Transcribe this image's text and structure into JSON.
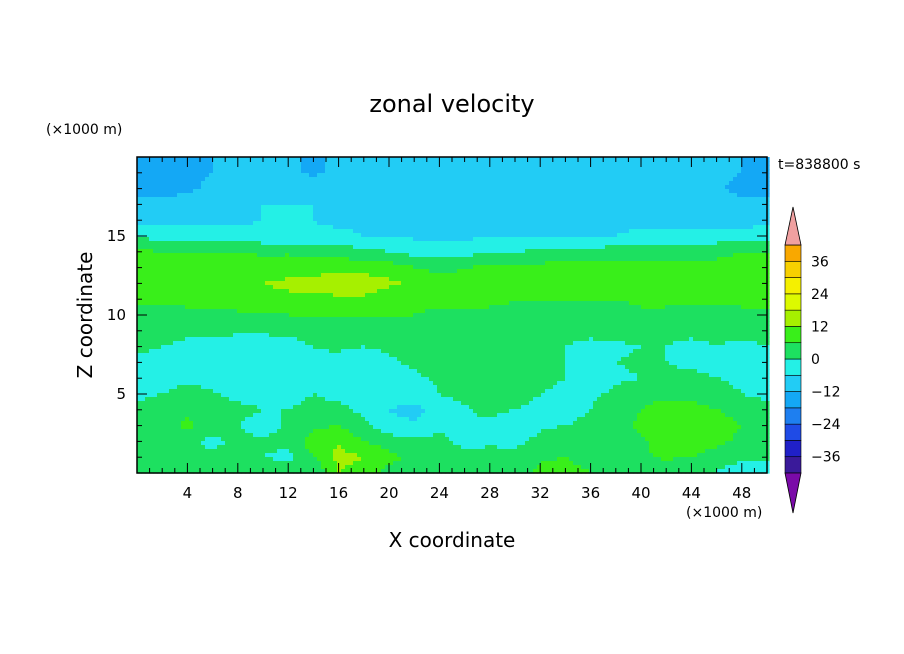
{
  "chart_data": {
    "type": "heatmap",
    "title": "zonal velocity",
    "xlabel": "X coordinate",
    "ylabel": "Z coordinate",
    "x_unit": "(×1000 m)",
    "z_unit": "(×1000 m)",
    "time_label": "t=838800 s",
    "xlim": [
      0,
      50
    ],
    "ylim": [
      0,
      20
    ],
    "x_ticks": [
      "4",
      "8",
      "12",
      "16",
      "20",
      "24",
      "28",
      "32",
      "36",
      "40",
      "44",
      "48"
    ],
    "y_ticks": [
      "5",
      "10",
      "15"
    ],
    "colorbar": {
      "min": -42,
      "max": 42,
      "step": 6,
      "tick_labels": [
        "36",
        "24",
        "12",
        "0",
        "−12",
        "−24",
        "−36"
      ],
      "colors": [
        "#7a0aa8",
        "#3a1a9a",
        "#2020c8",
        "#1f4be6",
        "#1e7ff0",
        "#14a8f5",
        "#22ccf5",
        "#24f0e6",
        "#1de060",
        "#39ef1a",
        "#a6f000",
        "#dcfa00",
        "#f5f000",
        "#f8d000",
        "#f9a800",
        "#f77b00",
        "#f24a00",
        "#e61a10",
        "#f0a0a0"
      ]
    },
    "velocity_field": {
      "nx": 26,
      "nz": 20,
      "x_step": 2,
      "z_step": 1,
      "rows_from_bottom": [
        [
          3,
          1,
          1,
          0,
          6,
          6,
          6,
          0,
          12,
          9,
          4,
          2,
          0,
          1,
          2,
          2,
          8,
          8,
          6,
          4,
          2,
          0,
          0,
          0,
          -4,
          -6
        ],
        [
          5,
          2,
          0,
          2,
          4,
          0,
          -2,
          6,
          14,
          12,
          8,
          4,
          2,
          3,
          2,
          3,
          5,
          6,
          4,
          3,
          5,
          7,
          6,
          2,
          2,
          1
        ],
        [
          4,
          4,
          2,
          -2,
          2,
          1,
          2,
          9,
          11,
          6,
          3,
          2,
          2,
          -2,
          -1,
          -2,
          2,
          3,
          4,
          3,
          5,
          9,
          10,
          8,
          4,
          2
        ],
        [
          2,
          4,
          7,
          4,
          0,
          -3,
          1,
          5,
          6,
          2,
          -4,
          -5,
          -2,
          0,
          -2,
          -5,
          -1,
          0,
          2,
          4,
          7,
          10,
          12,
          10,
          6,
          2
        ],
        [
          1,
          3,
          5,
          4,
          2,
          0,
          0,
          2,
          2,
          -2,
          -6,
          -8,
          -4,
          -1,
          2,
          0,
          -2,
          -3,
          0,
          3,
          6,
          9,
          9,
          6,
          3,
          1
        ],
        [
          -1,
          0,
          2,
          1,
          -2,
          -3,
          -2,
          0,
          -2,
          -4,
          -4,
          -3,
          0,
          2,
          5,
          3,
          0,
          -2,
          -1,
          1,
          4,
          4,
          3,
          2,
          0,
          -1
        ],
        [
          -2,
          -2,
          -1,
          -3,
          -5,
          -6,
          -4,
          -2,
          -4,
          -5,
          -3,
          -1,
          1,
          3,
          6,
          4,
          2,
          0,
          -2,
          -1,
          0,
          1,
          1,
          0,
          -1,
          -2
        ],
        [
          -1,
          -2,
          -3,
          -4,
          -6,
          -5,
          -3,
          -1,
          -2,
          -3,
          -1,
          1,
          2,
          3,
          4,
          3,
          1,
          0,
          -1,
          0,
          1,
          0,
          -1,
          -1,
          -2,
          -2
        ],
        [
          1,
          0,
          -1,
          -2,
          -3,
          -3,
          -2,
          0,
          1,
          0,
          1,
          2,
          3,
          4,
          3,
          2,
          1,
          0,
          -1,
          -1,
          0,
          0,
          -1,
          0,
          -1,
          0
        ],
        [
          2,
          2,
          1,
          1,
          1,
          1,
          1,
          2,
          2,
          2,
          2,
          3,
          3,
          2,
          2,
          1,
          1,
          1,
          1,
          2,
          2,
          1,
          1,
          1,
          1,
          2
        ],
        [
          5,
          4,
          4,
          4,
          5,
          5,
          6,
          6,
          6,
          6,
          6,
          6,
          5,
          5,
          5,
          5,
          4,
          4,
          4,
          4,
          5,
          5,
          4,
          4,
          5,
          5
        ],
        [
          7,
          7,
          8,
          8,
          9,
          10,
          11,
          11,
          11,
          11,
          9,
          8,
          7,
          7,
          7,
          6,
          6,
          6,
          6,
          6,
          7,
          7,
          7,
          7,
          7,
          7
        ],
        [
          7,
          8,
          9,
          10,
          11,
          12,
          13,
          14,
          15,
          15,
          13,
          11,
          9,
          8,
          8,
          8,
          8,
          8,
          8,
          8,
          8,
          8,
          8,
          8,
          8,
          7
        ],
        [
          8,
          8,
          8,
          9,
          9,
          9,
          10,
          10,
          10,
          10,
          9,
          6,
          4,
          6,
          7,
          7,
          8,
          8,
          8,
          8,
          8,
          7,
          7,
          7,
          8,
          8
        ],
        [
          7,
          6,
          6,
          6,
          6,
          5,
          5,
          4,
          3,
          2,
          0,
          -2,
          -3,
          -2,
          -1,
          0,
          1,
          2,
          2,
          3,
          4,
          5,
          5,
          5,
          6,
          6
        ],
        [
          -1,
          -2,
          -3,
          -3,
          -4,
          -4,
          -4,
          -5,
          -5,
          -6,
          -6,
          -7,
          -7,
          -7,
          -7,
          -6,
          -6,
          -6,
          -6,
          -6,
          -5,
          -5,
          -5,
          -4,
          -3,
          -2
        ],
        [
          -8,
          -8,
          -7,
          -7,
          -7,
          -6,
          -6,
          -6,
          -7,
          -7,
          -7,
          -7,
          -7,
          -7,
          -8,
          -8,
          -8,
          -7,
          -7,
          -7,
          -7,
          -7,
          -8,
          -9,
          -9,
          -8
        ],
        [
          -9,
          -10,
          -10,
          -8,
          -7,
          -6,
          -6,
          -6,
          -7,
          -8,
          -8,
          -7,
          -7,
          -7,
          -8,
          -9,
          -10,
          -10,
          -9,
          -8,
          -8,
          -8,
          -9,
          -10,
          -10,
          -10
        ],
        [
          -14,
          -14,
          -13,
          -11,
          -8,
          -7,
          -7,
          -7,
          -8,
          -9,
          -9,
          -8,
          -7,
          -8,
          -9,
          -9,
          -10,
          -10,
          -10,
          -9,
          -9,
          -9,
          -10,
          -11,
          -14,
          -15
        ],
        [
          -14,
          -14,
          -13,
          -12,
          -10,
          -10,
          -11,
          -13,
          -11,
          -10,
          -10,
          -9,
          -9,
          -9,
          -9,
          -10,
          -10,
          -10,
          -10,
          -10,
          -10,
          -10,
          -10,
          -10,
          -12,
          -13
        ]
      ]
    }
  }
}
